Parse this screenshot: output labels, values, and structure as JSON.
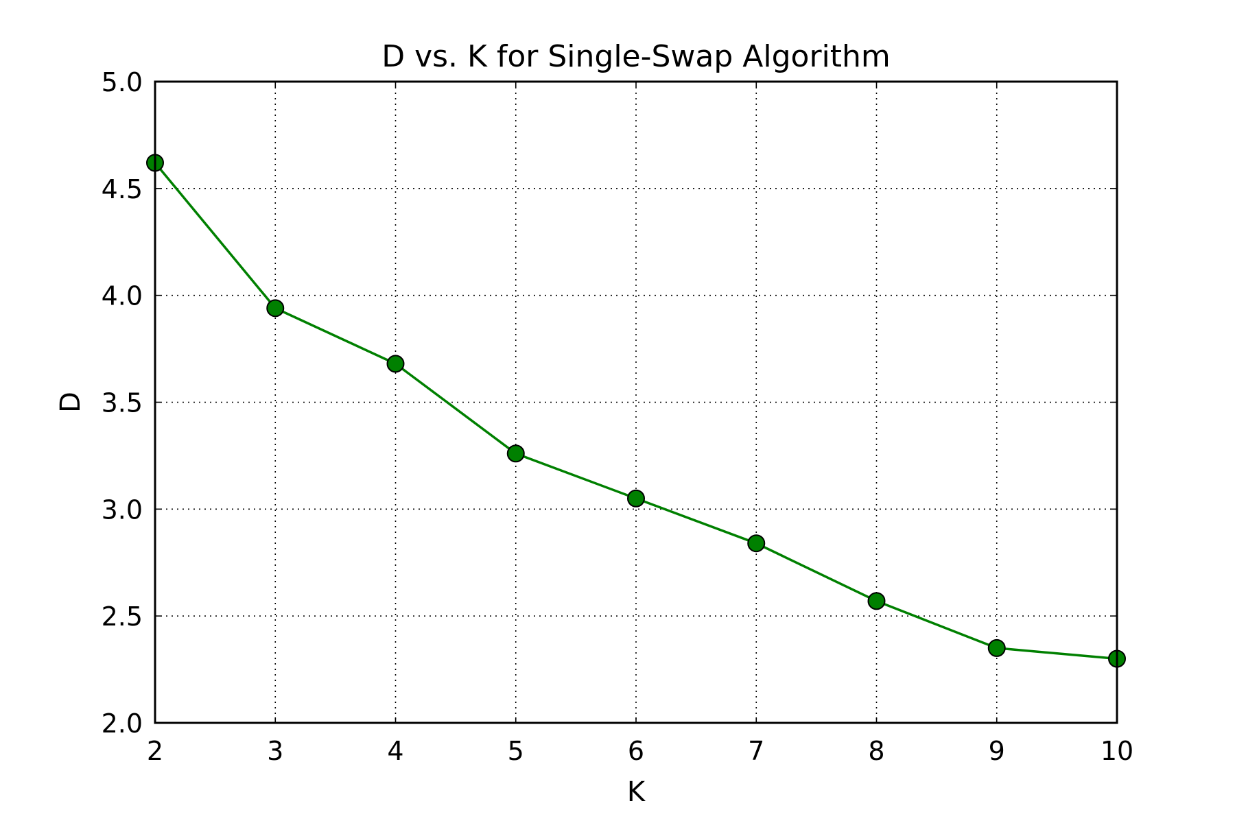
{
  "chart_data": {
    "type": "line",
    "title": "D vs. K for Single-Swap Algorithm",
    "xlabel": "K",
    "ylabel": "D",
    "xlim": [
      2,
      10
    ],
    "ylim": [
      2.0,
      5.0
    ],
    "x_ticks": [
      "2",
      "3",
      "4",
      "5",
      "6",
      "7",
      "8",
      "9",
      "10"
    ],
    "y_ticks": [
      "2.0",
      "2.5",
      "3.0",
      "3.5",
      "4.0",
      "4.5",
      "5.0"
    ],
    "grid": true,
    "colors": {
      "line": "#008000",
      "marker_fill": "#008000",
      "marker_edge": "#000000"
    },
    "series": [
      {
        "x": [
          2,
          3,
          4,
          5,
          6,
          7,
          8,
          9,
          10
        ],
        "values": [
          4.62,
          3.94,
          3.68,
          3.26,
          3.05,
          2.84,
          2.57,
          2.35,
          2.3
        ]
      }
    ]
  }
}
